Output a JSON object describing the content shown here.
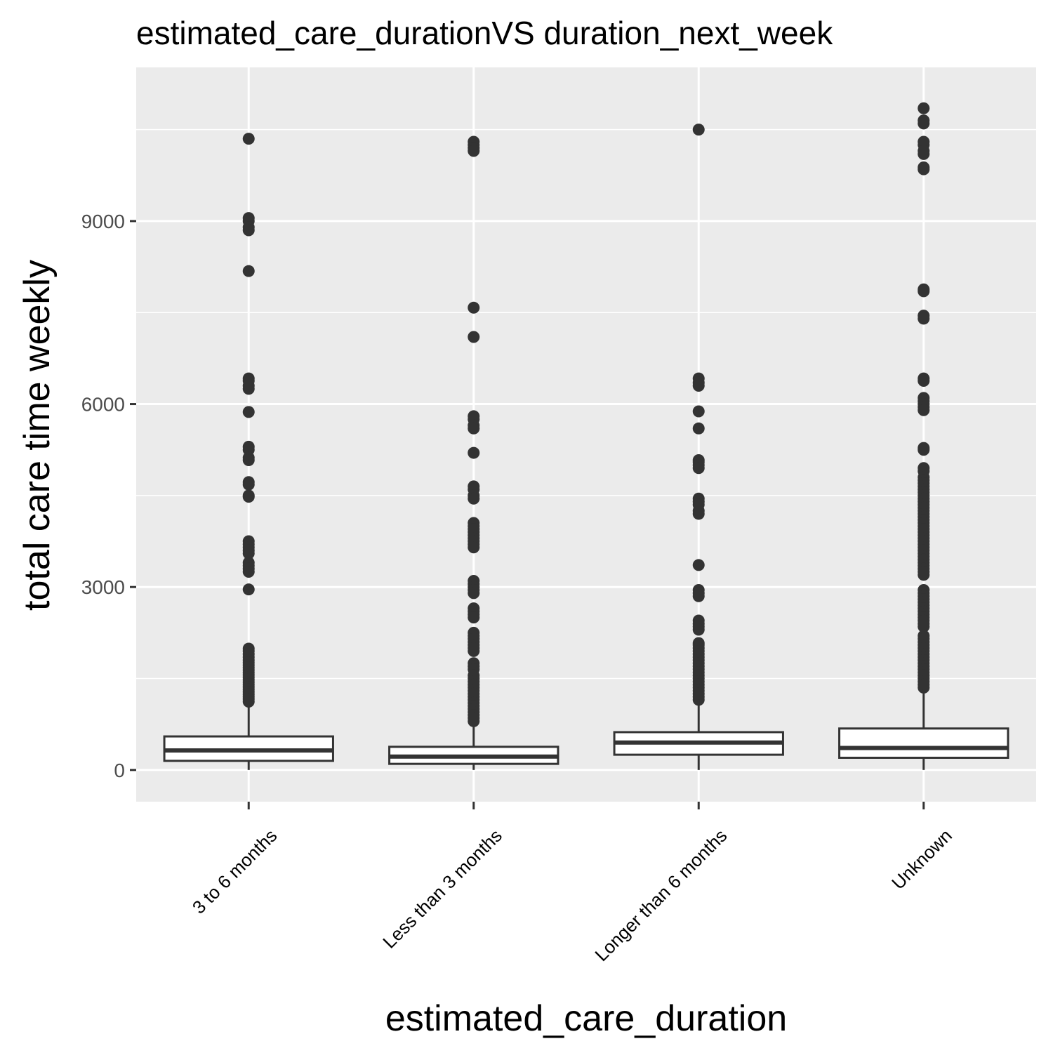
{
  "chart_data": {
    "type": "boxplot",
    "title": "estimated_care_durationVS duration_next_week",
    "xlabel": "estimated_care_duration",
    "ylabel": "total care time weekly",
    "categories": [
      "3 to 6 months",
      "Less than 3 months",
      "Longer than 6 months",
      "Unknown"
    ],
    "yticks": [
      0,
      3000,
      6000,
      9000
    ],
    "ylim": [
      -520,
      11520
    ],
    "grid": true,
    "panel_background": "#ebebeb",
    "box_fill": "#ffffff",
    "line_color": "#333333",
    "boxes": [
      {
        "category": "3 to 6 months",
        "whisker_low": 0,
        "q1": 150,
        "median": 320,
        "q3": 550,
        "whisker_high": 1080,
        "outliers": [
          10350,
          9050,
          9000,
          8900,
          8850,
          8180,
          6420,
          6380,
          6300,
          6250,
          5870,
          5300,
          5250,
          5120,
          5080,
          4720,
          4680,
          4500,
          4480,
          3750,
          3700,
          3650,
          3600,
          3550,
          3400,
          3350,
          3300,
          3250,
          2960,
          1990,
          1950,
          1900,
          1850,
          1800,
          1760,
          1720,
          1680,
          1640,
          1600,
          1560,
          1520,
          1480,
          1440,
          1400,
          1360,
          1320,
          1280,
          1240,
          1200,
          1160,
          1120
        ]
      },
      {
        "category": "Less than 3 months",
        "whisker_low": 0,
        "q1": 100,
        "median": 220,
        "q3": 380,
        "whisker_high": 750,
        "outliers": [
          10300,
          10250,
          10200,
          10150,
          7580,
          7100,
          5800,
          5750,
          5650,
          5600,
          5200,
          4650,
          4600,
          4500,
          4450,
          4050,
          4000,
          3950,
          3900,
          3850,
          3800,
          3750,
          3700,
          3650,
          3100,
          3050,
          3000,
          2950,
          2900,
          2650,
          2600,
          2550,
          2500,
          2250,
          2200,
          2150,
          2100,
          2050,
          2000,
          1950,
          1750,
          1700,
          1650,
          1550,
          1500,
          1450,
          1400,
          1350,
          1300,
          1250,
          1200,
          1150,
          1100,
          1050,
          1000,
          950,
          900,
          850,
          800
        ]
      },
      {
        "category": "Longer than 6 months",
        "whisker_low": 0,
        "q1": 250,
        "median": 450,
        "q3": 620,
        "whisker_high": 1150,
        "outliers": [
          10500,
          6420,
          6350,
          6300,
          5880,
          5600,
          5080,
          5050,
          5000,
          4950,
          4450,
          4400,
          4350,
          4250,
          4200,
          3360,
          2950,
          2900,
          2850,
          2450,
          2400,
          2350,
          2300,
          2080,
          2050,
          2000,
          1950,
          1900,
          1850,
          1800,
          1750,
          1700,
          1650,
          1600,
          1550,
          1500,
          1450,
          1400,
          1350,
          1300,
          1250,
          1200,
          1150
        ]
      },
      {
        "category": "Unknown",
        "whisker_low": 0,
        "q1": 200,
        "median": 360,
        "q3": 680,
        "whisker_high": 1330,
        "outliers": [
          10850,
          10650,
          10600,
          10300,
          10250,
          10150,
          10100,
          9880,
          9850,
          7880,
          7850,
          7450,
          7400,
          6420,
          6380,
          6100,
          6050,
          6000,
          5950,
          5900,
          5280,
          5250,
          4950,
          4900,
          4800,
          4750,
          4700,
          4650,
          4600,
          4550,
          4500,
          4450,
          4400,
          4350,
          4300,
          4250,
          4200,
          4150,
          4100,
          4050,
          4000,
          3950,
          3900,
          3850,
          3800,
          3750,
          3700,
          3650,
          3600,
          3550,
          3500,
          3450,
          3400,
          3350,
          3300,
          3250,
          3200,
          2950,
          2900,
          2850,
          2800,
          2750,
          2700,
          2650,
          2600,
          2550,
          2500,
          2450,
          2400,
          2350,
          2200,
          2150,
          2100,
          2050,
          2000,
          1950,
          1900,
          1850,
          1800,
          1750,
          1700,
          1650,
          1600,
          1550,
          1500,
          1450,
          1400,
          1350
        ]
      }
    ]
  }
}
